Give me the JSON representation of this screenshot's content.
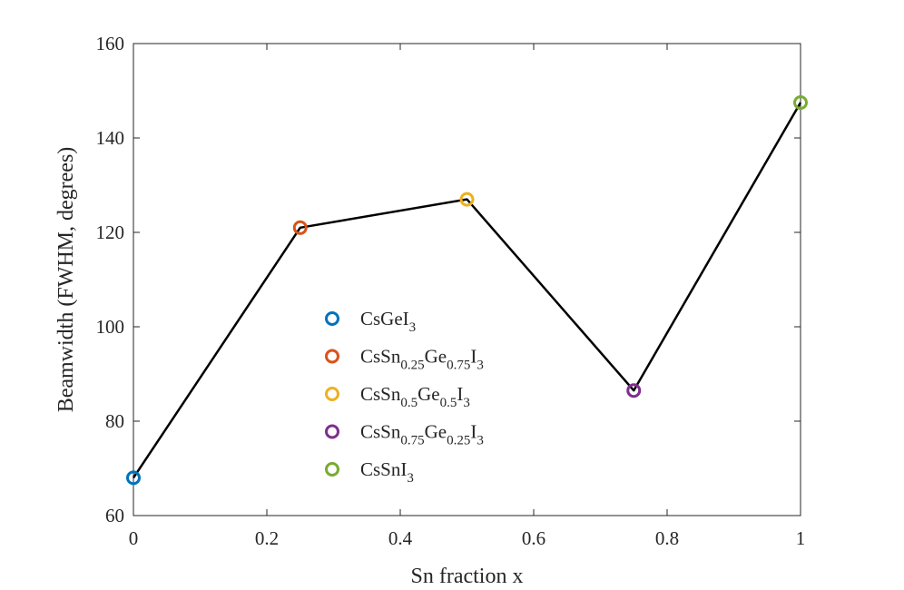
{
  "chart_data": {
    "type": "line",
    "title": "",
    "xlabel": "Sn fraction x",
    "ylabel": "Beamwidth (FWHM, degrees)",
    "xlim": [
      0,
      1
    ],
    "ylim": [
      60,
      160
    ],
    "xticks": [
      0,
      0.2,
      0.4,
      0.6,
      0.8,
      1
    ],
    "yticks": [
      60,
      80,
      100,
      120,
      140,
      160
    ],
    "xtick_labels": [
      "0",
      "0.2",
      "0.4",
      "0.6",
      "0.8",
      "1"
    ],
    "ytick_labels": [
      "60",
      "80",
      "100",
      "120",
      "140",
      "160"
    ],
    "grid": false,
    "legend_position": "center",
    "line_color": "#000000",
    "x": [
      0,
      0.25,
      0.5,
      0.75,
      1
    ],
    "y": [
      68,
      121,
      127,
      86.5,
      147.5
    ],
    "points": [
      {
        "x": 0,
        "y": 68,
        "color": "#0072BD",
        "label_parts": [
          [
            "CsGeI",
            ""
          ],
          [
            "3",
            "sub"
          ]
        ]
      },
      {
        "x": 0.25,
        "y": 121,
        "color": "#D95319",
        "label_parts": [
          [
            "CsSn",
            ""
          ],
          [
            "0.25",
            "sub"
          ],
          [
            "Ge",
            ""
          ],
          [
            "0.75",
            "sub"
          ],
          [
            "I",
            ""
          ],
          [
            "3",
            "sub"
          ]
        ]
      },
      {
        "x": 0.5,
        "y": 127,
        "color": "#EDB120",
        "label_parts": [
          [
            "CsSn",
            ""
          ],
          [
            "0.5",
            "sub"
          ],
          [
            "Ge",
            ""
          ],
          [
            "0.5",
            "sub"
          ],
          [
            "I",
            ""
          ],
          [
            "3",
            "sub"
          ]
        ]
      },
      {
        "x": 0.75,
        "y": 86.5,
        "color": "#7E2F8E",
        "label_parts": [
          [
            "CsSn",
            ""
          ],
          [
            "0.75",
            "sub"
          ],
          [
            "Ge",
            ""
          ],
          [
            "0.25",
            "sub"
          ],
          [
            "I",
            ""
          ],
          [
            "3",
            "sub"
          ]
        ]
      },
      {
        "x": 1,
        "y": 147.5,
        "color": "#77AC30",
        "label_parts": [
          [
            "CsSnI",
            ""
          ],
          [
            "3",
            "sub"
          ]
        ]
      }
    ]
  }
}
